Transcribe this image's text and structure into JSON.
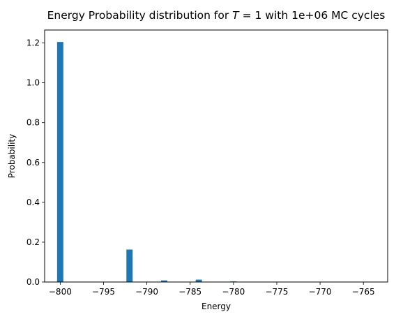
{
  "chart_data": {
    "type": "bar",
    "title": "Energy Probability distribution for $T = 1$ with 1e+06 MC cycles",
    "title_parts": {
      "prefix": "Energy Probability distribution for ",
      "var": "T",
      "eq": " = 1",
      "suffix": " with 1e+06 MC cycles"
    },
    "xlabel": "Energy",
    "ylabel": "Probability",
    "xlim": [
      -801.8,
      -762.2
    ],
    "ylim": [
      0,
      1.265
    ],
    "xticks": [
      -800,
      -795,
      -790,
      -785,
      -780,
      -775,
      -770,
      -765
    ],
    "xtick_labels": [
      "−800",
      "−795",
      "−790",
      "−785",
      "−780",
      "−775",
      "−770",
      "−765"
    ],
    "yticks": [
      0.0,
      0.2,
      0.4,
      0.6,
      0.8,
      1.0,
      1.2
    ],
    "ytick_labels": [
      "0.0",
      "0.2",
      "0.4",
      "0.6",
      "0.8",
      "1.0",
      "1.2"
    ],
    "bin_width": 0.72,
    "bars": [
      {
        "x": -800,
        "value": 1.205
      },
      {
        "x": -792,
        "value": 0.163
      },
      {
        "x": -788,
        "value": 0.008
      },
      {
        "x": -784,
        "value": 0.012
      },
      {
        "x": -780,
        "value": 0.003
      }
    ],
    "color": "#1f77b4",
    "grid": false,
    "legend": false
  }
}
